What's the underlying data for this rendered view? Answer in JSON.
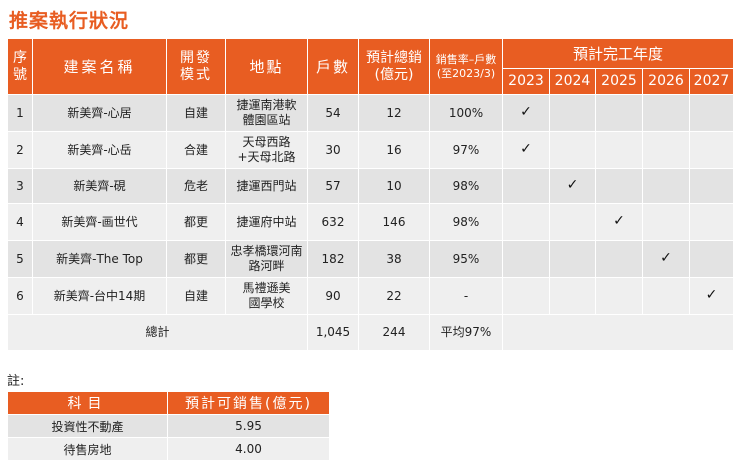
{
  "title": "推案執行狀況",
  "headers": {
    "seq": "序號",
    "name": "建案名稱",
    "mode": "開發模式",
    "location": "地點",
    "units": "戶數",
    "sales": "預計總銷(億元)",
    "rate": "銷售率–戶數(至2023/3)",
    "completion": "預計完工年度"
  },
  "years": [
    "2023",
    "2024",
    "2025",
    "2026",
    "2027"
  ],
  "check_mark": "✓",
  "rows": [
    {
      "seq": "1",
      "name": "新美齊-心居",
      "mode": "自建",
      "location": "捷運南港軟體園區站",
      "units": "54",
      "sales": "12",
      "rate": "100%",
      "year_index": 0
    },
    {
      "seq": "2",
      "name": "新美齊-心岳",
      "mode": "合建",
      "location": "天母西路+天母北路",
      "units": "30",
      "sales": "16",
      "rate": "97%",
      "year_index": 0
    },
    {
      "seq": "3",
      "name": "新美齊-硯",
      "mode": "危老",
      "location": "捷運西門站",
      "units": "57",
      "sales": "10",
      "rate": "98%",
      "year_index": 1
    },
    {
      "seq": "4",
      "name": "新美齊-画世代",
      "mode": "都更",
      "location": "捷運府中站",
      "units": "632",
      "sales": "146",
      "rate": "98%",
      "year_index": 2
    },
    {
      "seq": "5",
      "name": "新美齊-The Top",
      "mode": "都更",
      "location": "忠孝橋環河南路河畔",
      "units": "182",
      "sales": "38",
      "rate": "95%",
      "year_index": 3
    },
    {
      "seq": "6",
      "name": "新美齊-台中14期",
      "mode": "自建",
      "location": "馬禮遜美國學校",
      "units": "90",
      "sales": "22",
      "rate": "-",
      "year_index": 4
    }
  ],
  "total": {
    "label": "總計",
    "units": "1,045",
    "sales": "244",
    "rate": "平均97%"
  },
  "note": {
    "label": "註:",
    "headers": {
      "item": "科目",
      "value": "預計可銷售(億元)"
    },
    "rows": [
      {
        "item": "投資性不動產",
        "value": "5.95"
      },
      {
        "item": "待售房地",
        "value": "4.00"
      }
    ]
  }
}
